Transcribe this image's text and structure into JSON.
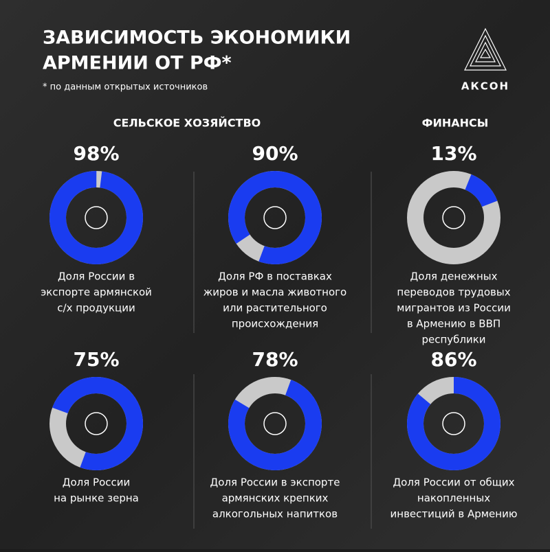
{
  "header": {
    "title_lines": [
      "ЗАВИСИМОСТЬ ЭКОНОМИКИ",
      "АРМЕНИИ ОТ РФ*"
    ],
    "note": "* по данным открытых источников"
  },
  "logo": "АКСОН",
  "sections": [
    "СЕЛЬСКОЕ ХОЗЯЙСТВО",
    "ФИНАНСЫ"
  ],
  "chart_data": [
    {
      "type": "donut",
      "values": [
        98
      ],
      "value_labels": [
        "98%"
      ],
      "caption": [
        "Доля России в",
        "экспорте армянской",
        "с/х продукции"
      ],
      "color": "#1a3cf0",
      "track_color": "#c9c9c9"
    },
    {
      "type": "donut",
      "values": [
        90
      ],
      "value_labels": [
        "90%"
      ],
      "caption": [
        "Доля РФ в поставках",
        "жиров и масла животного",
        "или растительного",
        "происхождения"
      ],
      "color": "#1a3cf0",
      "track_color": "#c9c9c9"
    },
    {
      "type": "donut",
      "values": [
        13
      ],
      "value_labels": [
        "13%"
      ],
      "caption": [
        "Доля денежных",
        "переводов трудовых",
        "мигрантов из России",
        "в Армению в ВВП",
        "республики"
      ],
      "color": "#1a3cf0",
      "track_color": "#c9c9c9"
    },
    {
      "type": "donut",
      "values": [
        75
      ],
      "value_labels": [
        "75%"
      ],
      "caption": [
        "Доля России",
        "на рынке зерна"
      ],
      "color": "#1a3cf0",
      "track_color": "#c9c9c9"
    },
    {
      "type": "donut",
      "values": [
        78
      ],
      "value_labels": [
        "78%"
      ],
      "caption": [
        "Доля России в экспорте",
        "армянских крепких",
        "алкогольных напитков"
      ],
      "color": "#1a3cf0",
      "track_color": "#c9c9c9"
    },
    {
      "type": "donut",
      "values": [
        86
      ],
      "value_labels": [
        "86%"
      ],
      "caption": [
        "Доля России от общих",
        "накопленных",
        "инвестиций в Армению"
      ],
      "color": "#1a3cf0",
      "track_color": "#c9c9c9"
    }
  ]
}
